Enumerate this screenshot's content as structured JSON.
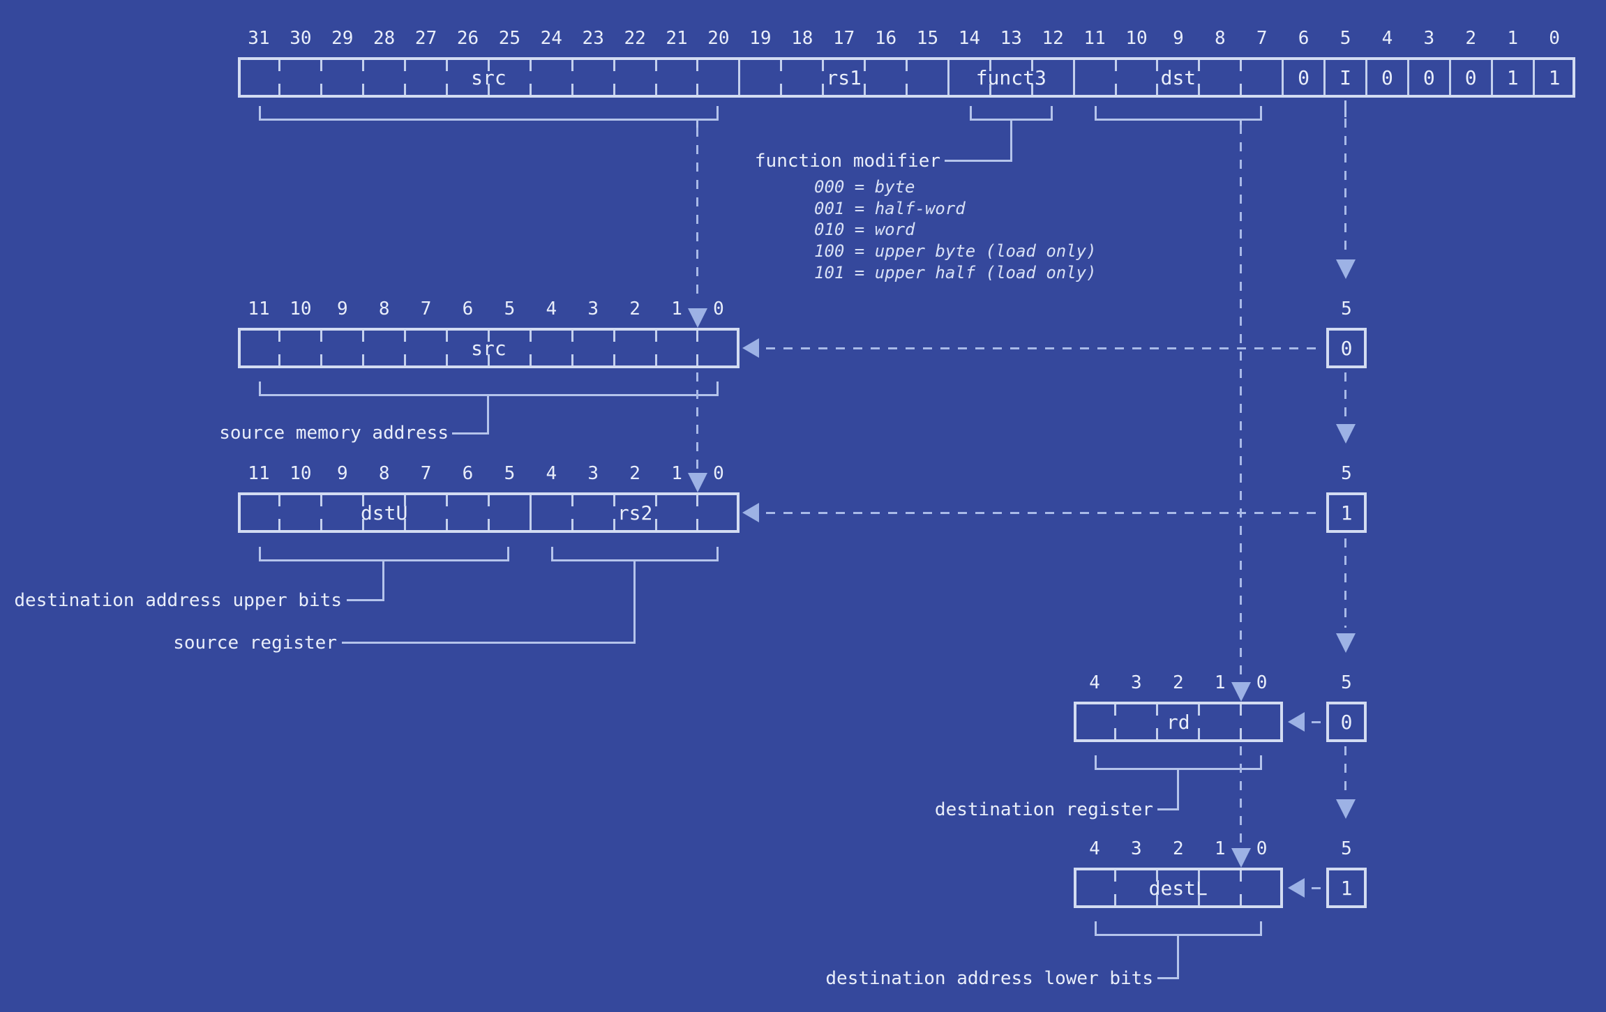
{
  "colors": {
    "background": "#35489C",
    "box_border": "#D3DCF2",
    "cell_divider": "#C4D0ED",
    "brace_line": "#B5C4EB",
    "dashed_line": "#A9BAE8",
    "arrowhead": "#9DB2E5",
    "text": "#E9EEFA",
    "option_text": "#D9E1F5"
  },
  "instruction_row": {
    "bit_numbers": [
      "31",
      "30",
      "29",
      "28",
      "27",
      "26",
      "25",
      "24",
      "23",
      "22",
      "21",
      "20",
      "19",
      "18",
      "17",
      "16",
      "15",
      "14",
      "13",
      "12",
      "11",
      "10",
      "9",
      "8",
      "7",
      "6",
      "5",
      "4",
      "3",
      "2",
      "1",
      "0"
    ],
    "fields": [
      {
        "label": "src",
        "span": 12
      },
      {
        "label": "rs1",
        "span": 5
      },
      {
        "label": "funct3",
        "span": 3
      },
      {
        "label": "dst",
        "span": 5
      },
      {
        "label": "0",
        "span": 1
      },
      {
        "label": "I",
        "span": 1
      },
      {
        "label": "0",
        "span": 1
      },
      {
        "label": "0",
        "span": 1
      },
      {
        "label": "0",
        "span": 1
      },
      {
        "label": "1",
        "span": 1
      },
      {
        "label": "1",
        "span": 1
      }
    ]
  },
  "function_modifier": {
    "label": "function modifier",
    "options": [
      "000 = byte",
      "001 = half-word",
      "010 = word",
      "100 = upper byte (load only)",
      "101 = upper half (load only)"
    ]
  },
  "src_row": {
    "bit_numbers": [
      "11",
      "10",
      "9",
      "8",
      "7",
      "6",
      "5",
      "4",
      "3",
      "2",
      "1",
      "0"
    ],
    "fields": [
      {
        "label": "src",
        "span": 12
      }
    ],
    "annotation": "source memory address"
  },
  "dst_rs2_row": {
    "bit_numbers": [
      "11",
      "10",
      "9",
      "8",
      "7",
      "6",
      "5",
      "4",
      "3",
      "2",
      "1",
      "0"
    ],
    "fields": [
      {
        "label": "dstU",
        "span": 7
      },
      {
        "label": "rs2",
        "span": 5
      }
    ],
    "annotations": {
      "upper": "destination address upper bits",
      "source": "source register"
    }
  },
  "rd_row": {
    "bit_numbers": [
      "4",
      "3",
      "2",
      "1",
      "0"
    ],
    "fields": [
      {
        "label": "rd",
        "span": 5
      }
    ],
    "annotation": "destination register"
  },
  "destl_row": {
    "bit_numbers": [
      "4",
      "3",
      "2",
      "1",
      "0"
    ],
    "fields": [
      {
        "label": "destL",
        "span": 5
      }
    ],
    "annotation": "destination address lower bits"
  },
  "shift_chain": [
    {
      "width_label": "5",
      "box_value": "0"
    },
    {
      "width_label": "5",
      "box_value": "1"
    },
    {
      "width_label": "5",
      "box_value": "0"
    },
    {
      "width_label": "5",
      "box_value": "1"
    }
  ]
}
